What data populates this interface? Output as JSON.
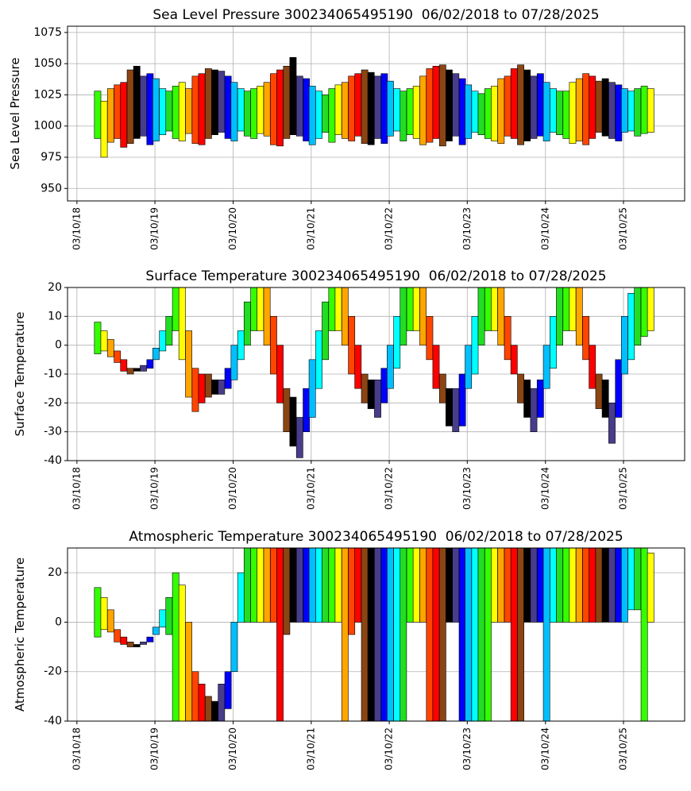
{
  "chart_data": [
    {
      "type": "range",
      "title": "Sea Level Pressure 300234065495190  06/02/2018 to 07/28/2025",
      "ylabel": "Sea Level Pressure",
      "x": [
        "06/15/18",
        "07/15/18",
        "08/15/18",
        "09/15/18",
        "10/15/18",
        "11/15/18",
        "12/15/18",
        "01/15/19",
        "02/15/19",
        "03/15/19",
        "04/15/19",
        "05/15/19",
        "06/15/19",
        "07/15/19",
        "08/15/19",
        "09/15/19",
        "10/15/19",
        "11/15/19",
        "12/15/19",
        "01/15/20",
        "02/15/20",
        "03/15/20",
        "04/15/20",
        "05/15/20",
        "06/15/20",
        "07/15/20",
        "08/15/20",
        "09/15/20",
        "10/15/20",
        "11/15/20",
        "12/15/20",
        "01/15/21",
        "02/15/21",
        "03/15/21",
        "04/15/21",
        "05/15/21",
        "06/15/21",
        "07/15/21",
        "08/15/21",
        "09/15/21",
        "10/15/21",
        "11/15/21",
        "12/15/21",
        "01/15/22",
        "02/15/22",
        "03/15/22",
        "04/15/22",
        "05/15/22",
        "06/15/22",
        "07/15/22",
        "08/15/22",
        "09/15/22",
        "10/15/22",
        "11/15/22",
        "12/15/22",
        "01/15/23",
        "02/15/23",
        "03/15/23",
        "04/15/23",
        "05/15/23",
        "06/15/23",
        "07/15/23",
        "08/15/23",
        "09/15/23",
        "10/15/23",
        "11/15/23",
        "12/15/23",
        "01/15/24",
        "02/15/24",
        "03/15/24",
        "04/15/24",
        "05/15/24",
        "06/15/24",
        "07/15/24",
        "08/15/24",
        "09/15/24",
        "10/15/24",
        "11/15/24",
        "12/15/24",
        "01/15/25",
        "02/15/25",
        "03/15/25",
        "04/15/25",
        "05/15/25",
        "06/15/25",
        "07/15/25"
      ],
      "low": [
        990,
        975,
        987,
        990,
        983,
        986,
        990,
        992,
        985,
        988,
        993,
        996,
        990,
        988,
        994,
        986,
        985,
        990,
        993,
        995,
        990,
        988,
        996,
        992,
        990,
        994,
        992,
        985,
        984,
        990,
        993,
        992,
        988,
        985,
        990,
        995,
        987,
        993,
        990,
        988,
        992,
        986,
        985,
        990,
        986,
        992,
        996,
        988,
        993,
        990,
        985,
        987,
        990,
        984,
        988,
        992,
        985,
        990,
        995,
        993,
        990,
        988,
        986,
        992,
        990,
        985,
        988,
        990,
        992,
        988,
        995,
        993,
        990,
        986,
        988,
        985,
        990,
        995,
        992,
        990,
        988,
        995,
        996,
        992,
        994,
        995
      ],
      "high": [
        1028,
        1020,
        1030,
        1033,
        1035,
        1045,
        1048,
        1040,
        1042,
        1038,
        1030,
        1028,
        1032,
        1035,
        1030,
        1040,
        1042,
        1046,
        1045,
        1044,
        1040,
        1035,
        1030,
        1028,
        1030,
        1032,
        1035,
        1042,
        1045,
        1048,
        1055,
        1040,
        1038,
        1032,
        1028,
        1025,
        1030,
        1033,
        1035,
        1040,
        1042,
        1045,
        1043,
        1040,
        1042,
        1036,
        1030,
        1028,
        1030,
        1032,
        1040,
        1046,
        1048,
        1049,
        1045,
        1042,
        1038,
        1033,
        1028,
        1026,
        1030,
        1032,
        1038,
        1040,
        1046,
        1049,
        1045,
        1040,
        1042,
        1035,
        1030,
        1028,
        1028,
        1035,
        1038,
        1042,
        1040,
        1036,
        1038,
        1035,
        1033,
        1030,
        1028,
        1030,
        1032,
        1030
      ],
      "month_colors": [
        "#483d8b",
        "#0000ff",
        "#00bfff",
        "#00ffff",
        "#22dd22",
        "#33ff00",
        "#ffff00",
        "#ffa500",
        "#ff4500",
        "#ff0000",
        "#8b4513",
        "#000000"
      ],
      "xlim": [
        "01/25/18",
        "12/21/25"
      ],
      "xticks": [
        "03/10/18",
        "03/10/19",
        "03/10/20",
        "03/10/21",
        "03/10/22",
        "03/10/23",
        "03/10/24",
        "03/10/25"
      ],
      "ylim": [
        940,
        1080
      ],
      "yticks": [
        950,
        975,
        1000,
        1025,
        1050,
        1075
      ],
      "grid": true
    },
    {
      "type": "range",
      "title": "Surface Temperature 300234065495190  06/02/2018 to 07/28/2025",
      "ylabel": "Surface Temperature",
      "x": [
        "06/15/18",
        "07/15/18",
        "08/15/18",
        "09/15/18",
        "10/15/18",
        "11/15/18",
        "12/15/18",
        "01/15/19",
        "02/15/19",
        "03/15/19",
        "04/15/19",
        "05/15/19",
        "06/15/19",
        "07/15/19",
        "08/15/19",
        "09/15/19",
        "10/15/19",
        "11/15/19",
        "12/15/19",
        "01/15/20",
        "02/15/20",
        "03/15/20",
        "04/15/20",
        "05/15/20",
        "06/15/20",
        "07/15/20",
        "08/15/20",
        "09/15/20",
        "10/15/20",
        "11/15/20",
        "12/15/20",
        "01/15/21",
        "02/15/21",
        "03/15/21",
        "04/15/21",
        "05/15/21",
        "06/15/21",
        "07/15/21",
        "08/15/21",
        "09/15/21",
        "10/15/21",
        "11/15/21",
        "12/15/21",
        "01/15/22",
        "02/15/22",
        "03/15/22",
        "04/15/22",
        "05/15/22",
        "06/15/22",
        "07/15/22",
        "08/15/22",
        "09/15/22",
        "10/15/22",
        "11/15/22",
        "12/15/22",
        "01/15/23",
        "02/15/23",
        "03/15/23",
        "04/15/23",
        "05/15/23",
        "06/15/23",
        "07/15/23",
        "08/15/23",
        "09/15/23",
        "10/15/23",
        "11/15/23",
        "12/15/23",
        "01/15/24",
        "02/15/24",
        "03/15/24",
        "04/15/24",
        "05/15/24",
        "06/15/24",
        "07/15/24",
        "08/15/24",
        "09/15/24",
        "10/15/24",
        "11/15/24",
        "12/15/24",
        "01/15/25",
        "02/15/25",
        "03/15/25",
        "04/15/25",
        "05/15/25",
        "06/15/25",
        "07/15/25"
      ],
      "low": [
        -3,
        -2,
        -4,
        -6,
        -9,
        -10,
        -9,
        -9,
        -8,
        -5,
        -2,
        0,
        5,
        -5,
        -18,
        -23,
        -20,
        -18,
        -17,
        -17,
        -15,
        -12,
        -5,
        0,
        5,
        5,
        0,
        -10,
        -20,
        -30,
        -35,
        -39,
        -30,
        -25,
        -15,
        -5,
        5,
        5,
        0,
        -10,
        -15,
        -20,
        -22,
        -25,
        -20,
        -15,
        -8,
        0,
        5,
        5,
        0,
        -5,
        -15,
        -20,
        -28,
        -30,
        -28,
        -15,
        -10,
        0,
        5,
        5,
        0,
        -5,
        -10,
        -20,
        -25,
        -30,
        -25,
        -15,
        -8,
        0,
        5,
        5,
        0,
        -5,
        -15,
        -22,
        -25,
        -34,
        -25,
        -10,
        -5,
        0,
        3,
        5
      ],
      "high": [
        8,
        5,
        2,
        -2,
        -5,
        -8,
        -8,
        -7,
        -5,
        -1,
        5,
        10,
        20,
        20,
        5,
        -8,
        -10,
        -10,
        -12,
        -12,
        -8,
        0,
        5,
        15,
        20,
        20,
        20,
        10,
        0,
        -15,
        -18,
        -25,
        -15,
        -5,
        5,
        15,
        20,
        20,
        20,
        10,
        0,
        -10,
        -12,
        -12,
        -8,
        0,
        10,
        20,
        20,
        20,
        20,
        10,
        0,
        -10,
        -15,
        -15,
        -10,
        0,
        10,
        20,
        20,
        20,
        20,
        10,
        0,
        -10,
        -12,
        -15,
        -12,
        0,
        10,
        20,
        20,
        20,
        20,
        10,
        0,
        -10,
        -12,
        -20,
        -5,
        10,
        18,
        20,
        20,
        20
      ],
      "month_colors": [
        "#483d8b",
        "#0000ff",
        "#00bfff",
        "#00ffff",
        "#22dd22",
        "#33ff00",
        "#ffff00",
        "#ffa500",
        "#ff4500",
        "#ff0000",
        "#8b4513",
        "#000000"
      ],
      "xlim": [
        "01/25/18",
        "12/21/25"
      ],
      "xticks": [
        "03/10/18",
        "03/10/19",
        "03/10/20",
        "03/10/21",
        "03/10/22",
        "03/10/23",
        "03/10/24",
        "03/10/25"
      ],
      "ylim": [
        -40,
        20
      ],
      "yticks": [
        -40,
        -30,
        -20,
        -10,
        0,
        10,
        20
      ],
      "grid": true
    },
    {
      "type": "range",
      "title": "Atmospheric Temperature 300234065495190  06/02/2018 to 07/28/2025",
      "ylabel": "Atmospheric Temperature",
      "x": [
        "06/15/18",
        "07/15/18",
        "08/15/18",
        "09/15/18",
        "10/15/18",
        "11/15/18",
        "12/15/18",
        "01/15/19",
        "02/15/19",
        "03/15/19",
        "04/15/19",
        "05/15/19",
        "06/15/19",
        "07/15/19",
        "08/15/19",
        "09/15/19",
        "10/15/19",
        "11/15/19",
        "12/15/19",
        "01/15/20",
        "02/15/20",
        "03/15/20",
        "04/15/20",
        "05/15/20",
        "06/15/20",
        "07/15/20",
        "08/15/20",
        "09/15/20",
        "10/15/20",
        "11/15/20",
        "12/15/20",
        "01/15/21",
        "02/15/21",
        "03/15/21",
        "04/15/21",
        "05/15/21",
        "06/15/21",
        "07/15/21",
        "08/15/21",
        "09/15/21",
        "10/15/21",
        "11/15/21",
        "12/15/21",
        "01/15/22",
        "02/15/22",
        "03/15/22",
        "04/15/22",
        "05/15/22",
        "06/15/22",
        "07/15/22",
        "08/15/22",
        "09/15/22",
        "10/15/22",
        "11/15/22",
        "12/15/22",
        "01/15/23",
        "02/15/23",
        "03/15/23",
        "04/15/23",
        "05/15/23",
        "06/15/23",
        "07/15/23",
        "08/15/23",
        "09/15/23",
        "10/15/23",
        "11/15/23",
        "12/15/23",
        "01/15/24",
        "02/15/24",
        "03/15/24",
        "04/15/24",
        "05/15/24",
        "06/15/24",
        "07/15/24",
        "08/15/24",
        "09/15/24",
        "10/15/24",
        "11/15/24",
        "12/15/24",
        "01/15/25",
        "02/15/25",
        "03/15/25",
        "04/15/25",
        "05/15/25",
        "06/15/25",
        "07/15/25"
      ],
      "low": [
        -6,
        -3,
        -4,
        -8,
        -9,
        -10,
        -10,
        -9,
        -8,
        -5,
        -2,
        -5,
        -40,
        -40,
        -40,
        -40,
        -40,
        -40,
        -40,
        -40,
        -35,
        -20,
        0,
        0,
        0,
        0,
        0,
        0,
        -40,
        -5,
        0,
        0,
        0,
        0,
        0,
        0,
        0,
        0,
        -40,
        -5,
        0,
        -40,
        -40,
        -40,
        -40,
        -40,
        -40,
        -40,
        0,
        0,
        0,
        -40,
        -40,
        -40,
        0,
        0,
        -40,
        -40,
        -40,
        -40,
        -40,
        0,
        0,
        0,
        -40,
        -40,
        0,
        0,
        0,
        -40,
        0,
        0,
        0,
        0,
        0,
        0,
        0,
        0,
        0,
        0,
        0,
        0,
        5,
        5,
        -40,
        0
      ],
      "high": [
        14,
        10,
        5,
        -3,
        -6,
        -8,
        -9,
        -8,
        -6,
        -2,
        5,
        10,
        20,
        15,
        0,
        -20,
        -25,
        -30,
        -32,
        -25,
        -20,
        0,
        20,
        30,
        30,
        30,
        30,
        30,
        30,
        30,
        30,
        30,
        30,
        30,
        30,
        30,
        30,
        30,
        30,
        30,
        30,
        30,
        30,
        30,
        30,
        30,
        30,
        30,
        30,
        30,
        30,
        30,
        30,
        30,
        30,
        30,
        30,
        30,
        30,
        30,
        30,
        30,
        30,
        30,
        30,
        30,
        30,
        30,
        30,
        30,
        30,
        30,
        30,
        30,
        30,
        30,
        30,
        30,
        30,
        30,
        30,
        30,
        30,
        30,
        30,
        28
      ],
      "month_colors": [
        "#483d8b",
        "#0000ff",
        "#00bfff",
        "#00ffff",
        "#22dd22",
        "#33ff00",
        "#ffff00",
        "#ffa500",
        "#ff4500",
        "#ff0000",
        "#8b4513",
        "#000000"
      ],
      "xlim": [
        "01/25/18",
        "12/21/25"
      ],
      "xticks": [
        "03/10/18",
        "03/10/19",
        "03/10/20",
        "03/10/21",
        "03/10/22",
        "03/10/23",
        "03/10/24",
        "03/10/25"
      ],
      "ylim": [
        -40,
        30
      ],
      "yticks": [
        -40,
        -20,
        0,
        20
      ],
      "grid": true
    }
  ]
}
